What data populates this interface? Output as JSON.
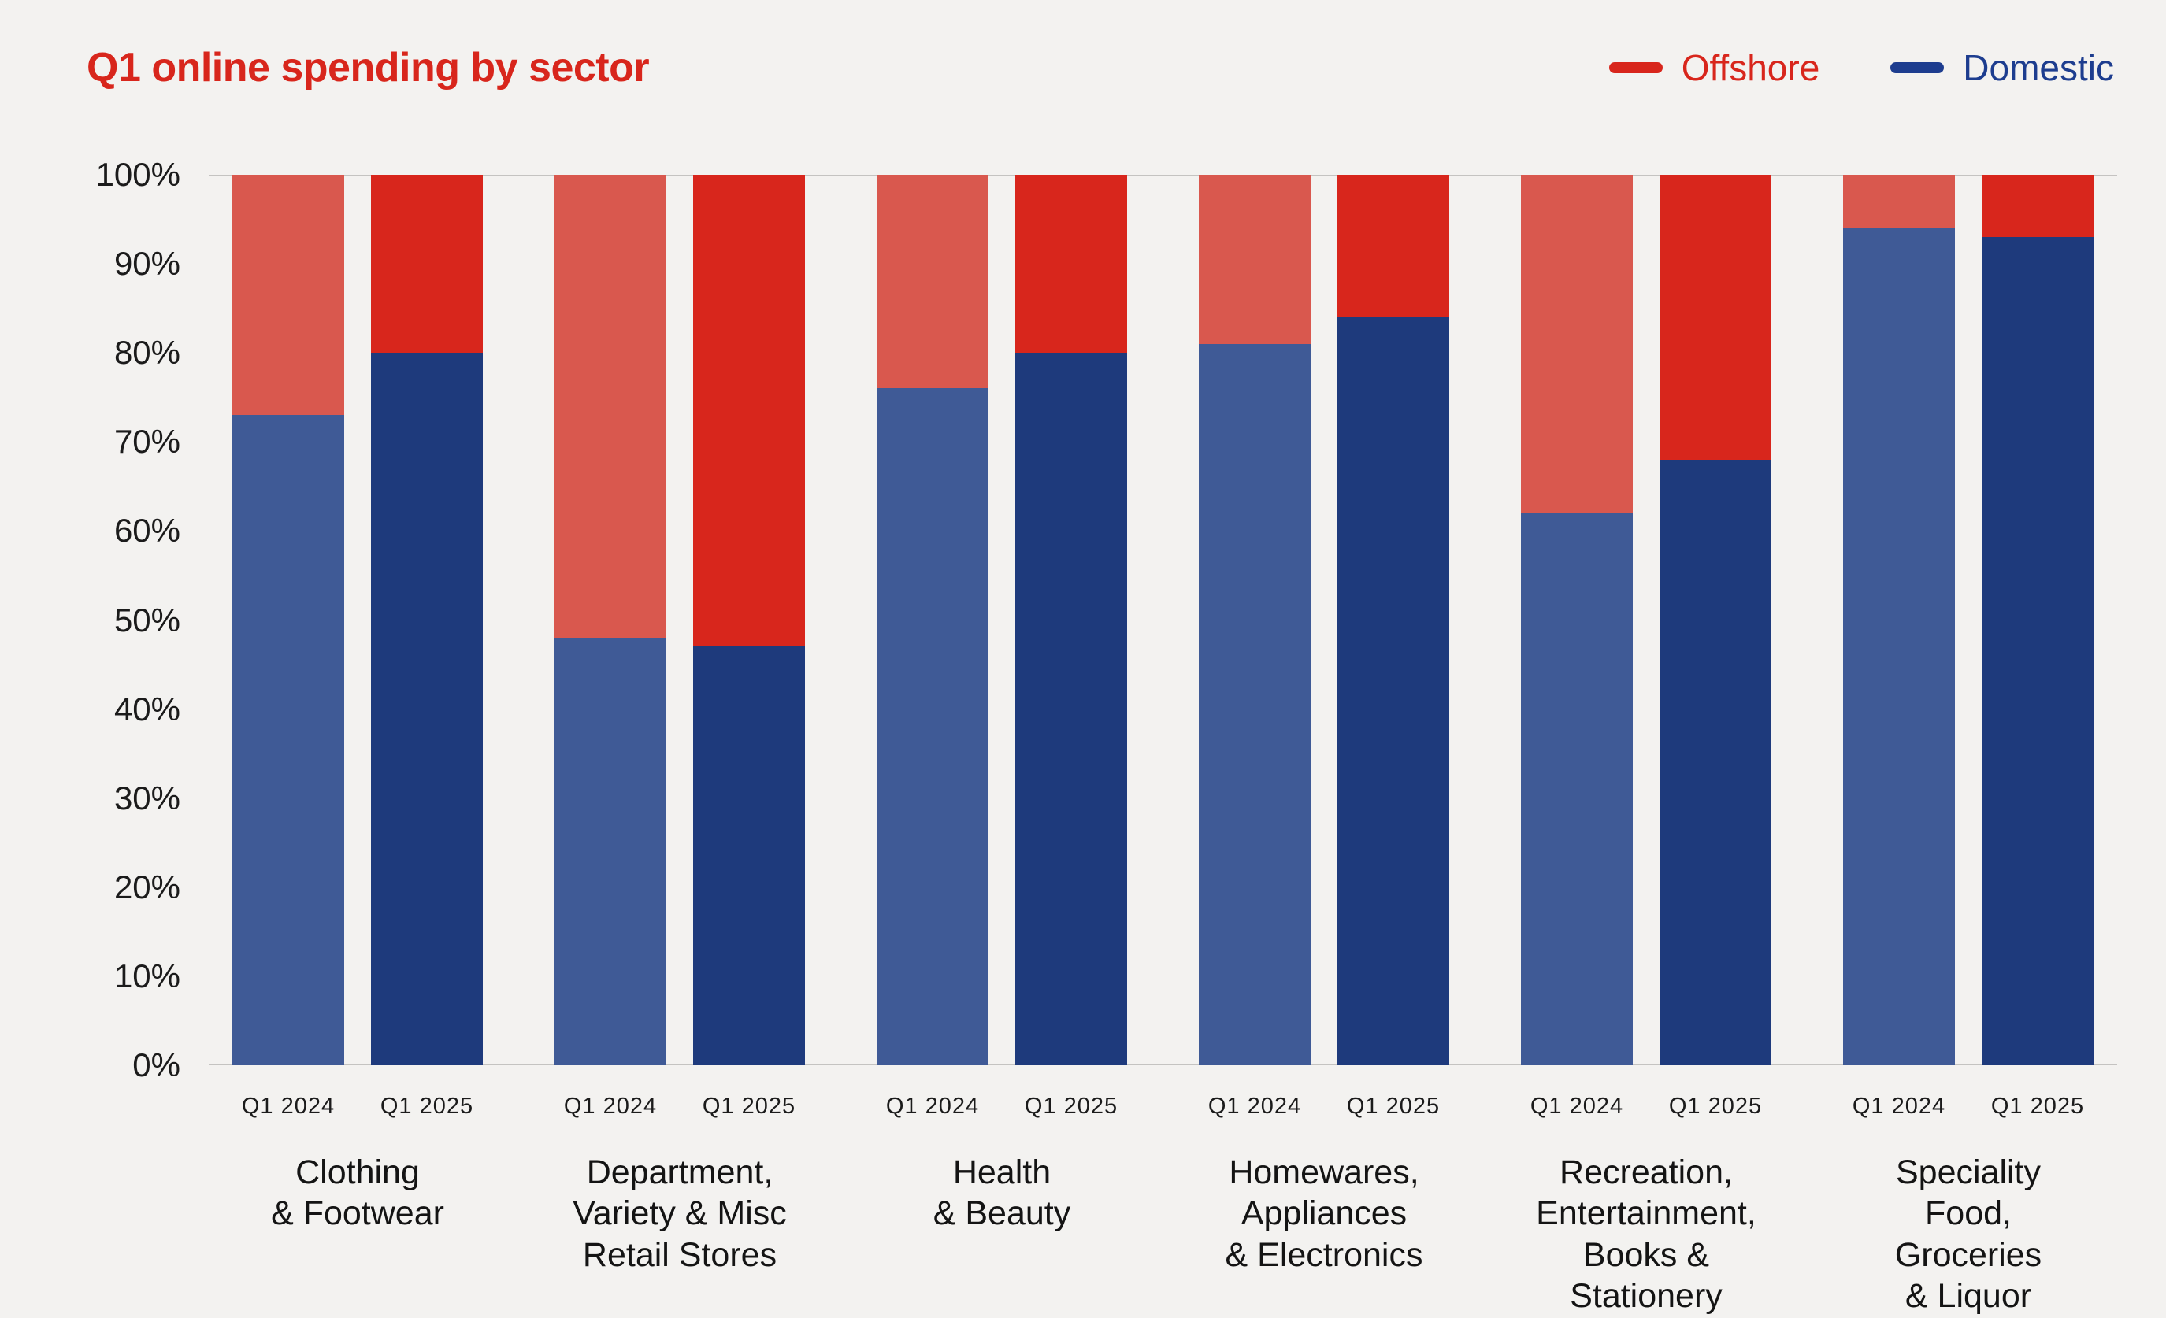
{
  "theme": {
    "background": "#f3f2f0",
    "text": "#1b1b1b",
    "accent": "#d8261c",
    "grid_line": "#c4c3c1"
  },
  "header": {
    "title": "Q1 online spending by sector"
  },
  "legend": [
    {
      "id": "offshore",
      "label": "Offshore",
      "color": "#d8261c"
    },
    {
      "id": "domestic",
      "label": "Domestic",
      "color": "#1d3d8f"
    }
  ],
  "chart_data": {
    "type": "bar",
    "variant": "stacked-100-percent",
    "title": "Q1 online spending by sector",
    "xlabel": "",
    "ylabel": "",
    "legend_position": "top-right",
    "grid": "horizontal lines at 0% and 100% only",
    "y_axis": {
      "min": 0,
      "max": 100,
      "step": 10,
      "tick_suffix": "%"
    },
    "series_periods": [
      "Q1 2024",
      "Q1 2025"
    ],
    "colors": {
      "offshore_2024": "#d9584e",
      "offshore_2025": "#d8261c",
      "domestic_2024": "#3f5a96",
      "domestic_2025": "#1e3a7c"
    },
    "sectors": [
      {
        "name": "Clothing & Footwear",
        "label_lines": [
          "Clothing",
          "& Footwear"
        ],
        "bars": [
          {
            "period": "Q1 2024",
            "domestic": 73,
            "offshore": 27
          },
          {
            "period": "Q1 2025",
            "domestic": 80,
            "offshore": 20
          }
        ]
      },
      {
        "name": "Department, Variety & Misc Retail Stores",
        "label_lines": [
          "Department,",
          "Variety & Misc",
          "Retail Stores"
        ],
        "bars": [
          {
            "period": "Q1 2024",
            "domestic": 48,
            "offshore": 52
          },
          {
            "period": "Q1 2025",
            "domestic": 47,
            "offshore": 53
          }
        ]
      },
      {
        "name": "Health & Beauty",
        "label_lines": [
          "Health",
          "& Beauty"
        ],
        "bars": [
          {
            "period": "Q1 2024",
            "domestic": 76,
            "offshore": 24
          },
          {
            "period": "Q1 2025",
            "domestic": 80,
            "offshore": 20
          }
        ]
      },
      {
        "name": "Homewares, Appliances & Electronics",
        "label_lines": [
          "Homewares,",
          "Appliances",
          "& Electronics"
        ],
        "bars": [
          {
            "period": "Q1 2024",
            "domestic": 81,
            "offshore": 19
          },
          {
            "period": "Q1 2025",
            "domestic": 84,
            "offshore": 16
          }
        ]
      },
      {
        "name": "Recreation, Entertainment, Books & Stationery",
        "label_lines": [
          "Recreation,",
          "Entertainment,",
          "Books &",
          "Stationery"
        ],
        "bars": [
          {
            "period": "Q1 2024",
            "domestic": 62,
            "offshore": 38
          },
          {
            "period": "Q1 2025",
            "domestic": 68,
            "offshore": 32
          }
        ]
      },
      {
        "name": "Speciality Food, Groceries & Liquor",
        "label_lines": [
          "Speciality",
          "Food,",
          "Groceries",
          "& Liquor"
        ],
        "bars": [
          {
            "period": "Q1 2024",
            "domestic": 94,
            "offshore": 6
          },
          {
            "period": "Q1 2025",
            "domestic": 93,
            "offshore": 7
          }
        ]
      }
    ]
  }
}
